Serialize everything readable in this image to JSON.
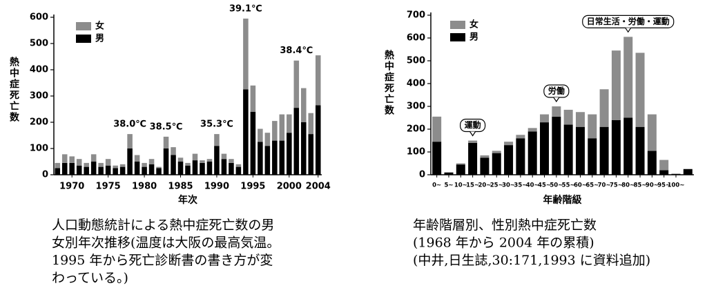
{
  "chart_data": [
    {
      "type": "bar",
      "stacked": true,
      "y_label": "熱中症死亡数",
      "x_label": "年次",
      "categories": [
        null,
        null,
        1970,
        null,
        null,
        null,
        null,
        1975,
        null,
        null,
        null,
        null,
        1980,
        null,
        null,
        null,
        null,
        1985,
        null,
        null,
        null,
        null,
        1990,
        null,
        null,
        null,
        null,
        1995,
        null,
        null,
        null,
        null,
        2000,
        null,
        null,
        null,
        2004
      ],
      "series": [
        {
          "name": "男",
          "color": "#000000",
          "values": [
            25,
            45,
            45,
            35,
            30,
            50,
            30,
            35,
            25,
            30,
            100,
            50,
            30,
            40,
            25,
            100,
            75,
            50,
            35,
            55,
            45,
            50,
            110,
            60,
            45,
            30,
            325,
            240,
            125,
            110,
            130,
            130,
            160,
            255,
            200,
            155,
            265
          ]
        },
        {
          "name": "女",
          "color": "#8c8c8c",
          "values": [
            20,
            33,
            25,
            25,
            15,
            28,
            15,
            25,
            10,
            10,
            55,
            25,
            15,
            20,
            5,
            45,
            30,
            15,
            10,
            25,
            10,
            10,
            45,
            20,
            15,
            10,
            270,
            100,
            50,
            50,
            75,
            100,
            70,
            180,
            130,
            80,
            190
          ]
        }
      ],
      "ylim": [
        0,
        600
      ],
      "yticks": [
        0,
        100,
        200,
        300,
        400,
        500,
        600
      ],
      "annotations": [
        {
          "text": "38.0℃",
          "category_index": 10
        },
        {
          "text": "38.5℃",
          "category_index": 15
        },
        {
          "text": "35.3℃",
          "category_index": 22
        },
        {
          "text": "39.1℃",
          "category_index": 26
        },
        {
          "text": "38.4℃",
          "category_index": 33
        }
      ],
      "caption": [
        "人口動態統計による熱中症死亡数の男",
        "女別年次推移(温度は大阪の最高気温。",
        "1995 年から死亡診断書の書き方が変",
        "わっている。)"
      ]
    },
    {
      "type": "bar",
      "stacked": true,
      "y_label": "熱中症死亡数",
      "x_label": "年齢階級",
      "categories": [
        "0~",
        "5~",
        "10~",
        "15~",
        "20~",
        "25~",
        "30~",
        "35~",
        "40~",
        "45~",
        "50~",
        "55~",
        "60~",
        "65~",
        "70~",
        "75~",
        "80~",
        "85~",
        "90~",
        "95~",
        "100~",
        null
      ],
      "series": [
        {
          "name": "男",
          "color": "#000000",
          "values": [
            145,
            10,
            45,
            140,
            75,
            95,
            130,
            160,
            190,
            230,
            255,
            220,
            210,
            160,
            210,
            240,
            250,
            210,
            105,
            20,
            3,
            25
          ]
        },
        {
          "name": "女",
          "color": "#8c8c8c",
          "values": [
            110,
            0,
            5,
            10,
            10,
            10,
            15,
            15,
            15,
            35,
            45,
            65,
            65,
            105,
            165,
            305,
            355,
            325,
            160,
            45,
            2,
            0
          ]
        }
      ],
      "ylim": [
        0,
        700
      ],
      "yticks": [
        0,
        100,
        200,
        300,
        400,
        500,
        600,
        700
      ],
      "annotations": [
        {
          "text": "運動",
          "category_index": 3
        },
        {
          "text": "労働",
          "category_index": 10
        },
        {
          "text": "日常生活・労働・運動",
          "category_index": 16
        }
      ],
      "caption": [
        "年齢階層別、性別熱中症死亡数",
        "(1968 年から 2004 年の累積)",
        "(中井,日生誌,30:171,1993 に資料追加)"
      ]
    }
  ]
}
